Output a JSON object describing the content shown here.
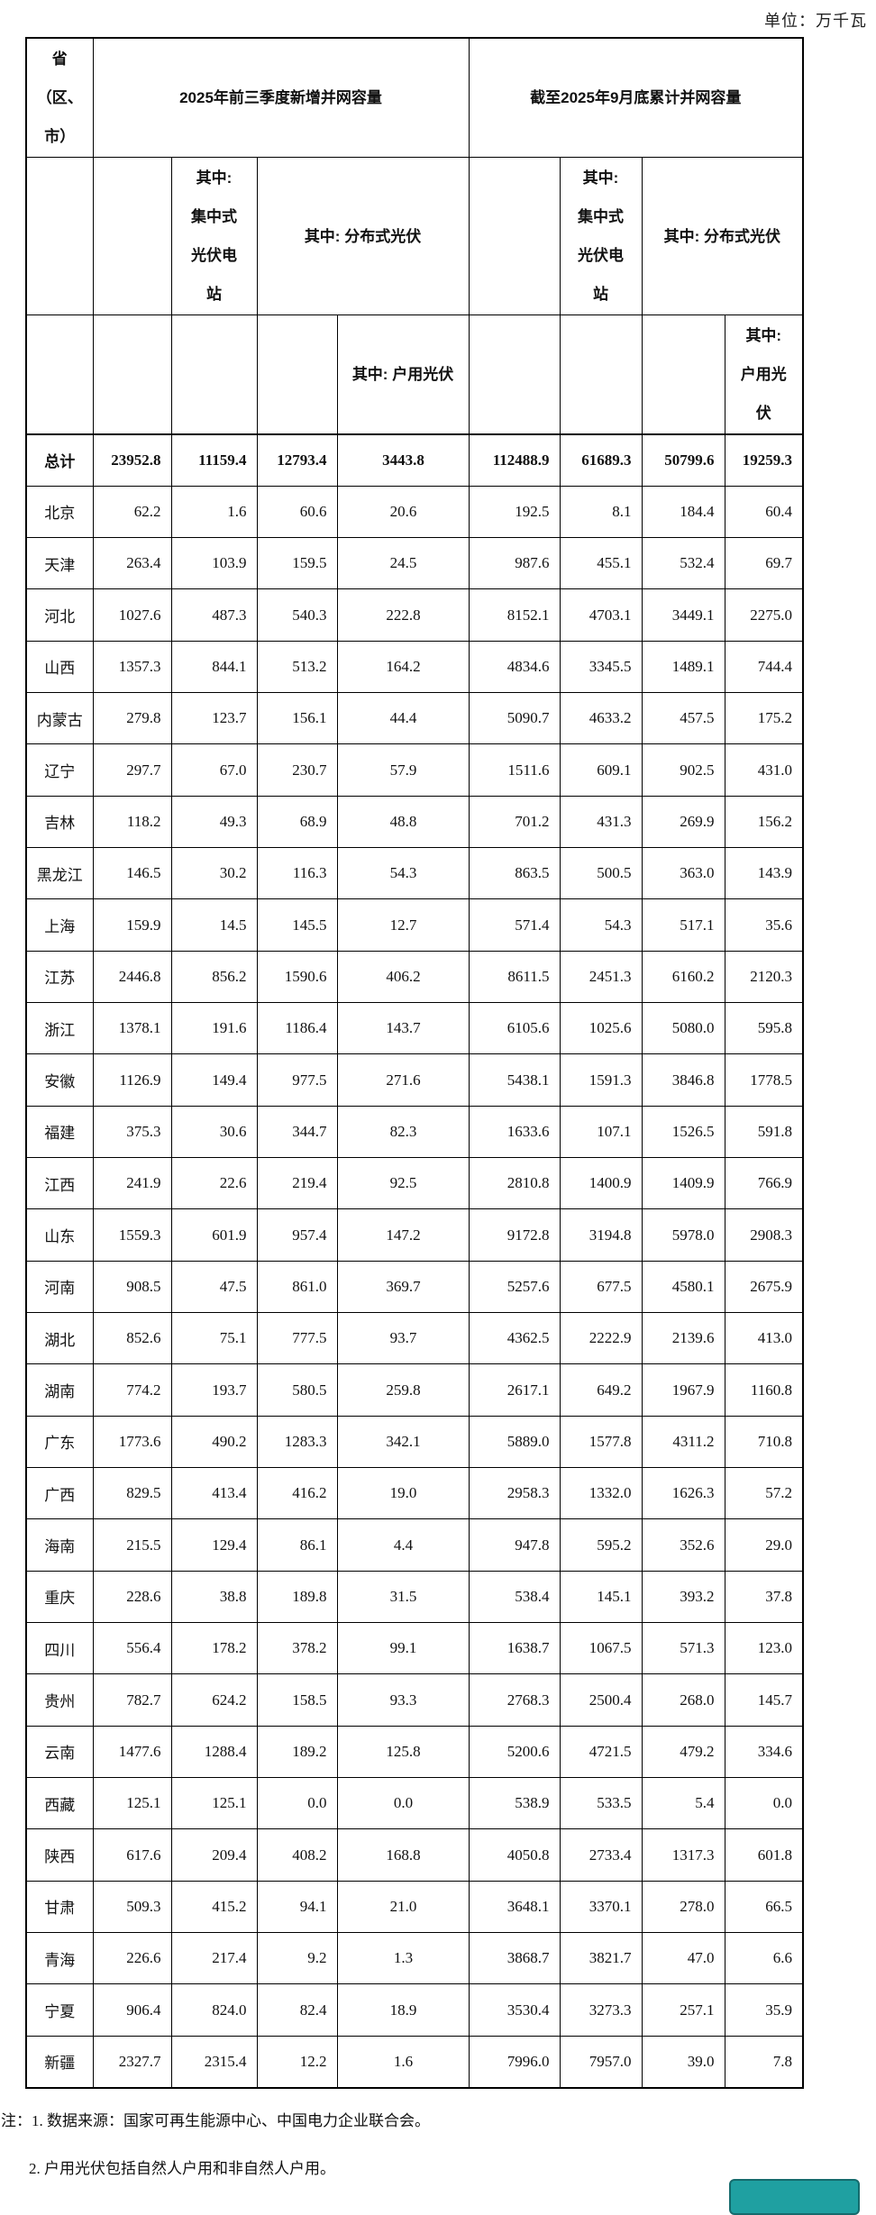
{
  "unit_label": "单位：万千瓦",
  "table": {
    "corner_header": "省\n（区、\n市）",
    "group1_title": "2025年前三季度新增并网容量",
    "group2_title": "截至2025年9月底累计并网容量",
    "sub_centralized": "其中:\n集中式\n光伏电\n站",
    "sub_distributed": "其中: 分布式光伏",
    "sub_household_wide": "其中: 户用光伏",
    "sub_household_narrow": "其中:\n户用光\n伏",
    "rows": [
      {
        "name": "总计",
        "values": [
          "23952.8",
          "11159.4",
          "12793.4",
          "3443.8",
          "112488.9",
          "61689.3",
          "50799.6",
          "19259.3"
        ]
      },
      {
        "name": "北京",
        "values": [
          "62.2",
          "1.6",
          "60.6",
          "20.6",
          "192.5",
          "8.1",
          "184.4",
          "60.4"
        ]
      },
      {
        "name": "天津",
        "values": [
          "263.4",
          "103.9",
          "159.5",
          "24.5",
          "987.6",
          "455.1",
          "532.4",
          "69.7"
        ]
      },
      {
        "name": "河北",
        "values": [
          "1027.6",
          "487.3",
          "540.3",
          "222.8",
          "8152.1",
          "4703.1",
          "3449.1",
          "2275.0"
        ]
      },
      {
        "name": "山西",
        "values": [
          "1357.3",
          "844.1",
          "513.2",
          "164.2",
          "4834.6",
          "3345.5",
          "1489.1",
          "744.4"
        ]
      },
      {
        "name": "内蒙古",
        "values": [
          "279.8",
          "123.7",
          "156.1",
          "44.4",
          "5090.7",
          "4633.2",
          "457.5",
          "175.2"
        ]
      },
      {
        "name": "辽宁",
        "values": [
          "297.7",
          "67.0",
          "230.7",
          "57.9",
          "1511.6",
          "609.1",
          "902.5",
          "431.0"
        ]
      },
      {
        "name": "吉林",
        "values": [
          "118.2",
          "49.3",
          "68.9",
          "48.8",
          "701.2",
          "431.3",
          "269.9",
          "156.2"
        ]
      },
      {
        "name": "黑龙江",
        "values": [
          "146.5",
          "30.2",
          "116.3",
          "54.3",
          "863.5",
          "500.5",
          "363.0",
          "143.9"
        ]
      },
      {
        "name": "上海",
        "values": [
          "159.9",
          "14.5",
          "145.5",
          "12.7",
          "571.4",
          "54.3",
          "517.1",
          "35.6"
        ]
      },
      {
        "name": "江苏",
        "values": [
          "2446.8",
          "856.2",
          "1590.6",
          "406.2",
          "8611.5",
          "2451.3",
          "6160.2",
          "2120.3"
        ]
      },
      {
        "name": "浙江",
        "values": [
          "1378.1",
          "191.6",
          "1186.4",
          "143.7",
          "6105.6",
          "1025.6",
          "5080.0",
          "595.8"
        ]
      },
      {
        "name": "安徽",
        "values": [
          "1126.9",
          "149.4",
          "977.5",
          "271.6",
          "5438.1",
          "1591.3",
          "3846.8",
          "1778.5"
        ]
      },
      {
        "name": "福建",
        "values": [
          "375.3",
          "30.6",
          "344.7",
          "82.3",
          "1633.6",
          "107.1",
          "1526.5",
          "591.8"
        ]
      },
      {
        "name": "江西",
        "values": [
          "241.9",
          "22.6",
          "219.4",
          "92.5",
          "2810.8",
          "1400.9",
          "1409.9",
          "766.9"
        ]
      },
      {
        "name": "山东",
        "values": [
          "1559.3",
          "601.9",
          "957.4",
          "147.2",
          "9172.8",
          "3194.8",
          "5978.0",
          "2908.3"
        ]
      },
      {
        "name": "河南",
        "values": [
          "908.5",
          "47.5",
          "861.0",
          "369.7",
          "5257.6",
          "677.5",
          "4580.1",
          "2675.9"
        ]
      },
      {
        "name": "湖北",
        "values": [
          "852.6",
          "75.1",
          "777.5",
          "93.7",
          "4362.5",
          "2222.9",
          "2139.6",
          "413.0"
        ]
      },
      {
        "name": "湖南",
        "values": [
          "774.2",
          "193.7",
          "580.5",
          "259.8",
          "2617.1",
          "649.2",
          "1967.9",
          "1160.8"
        ]
      },
      {
        "name": "广东",
        "values": [
          "1773.6",
          "490.2",
          "1283.3",
          "342.1",
          "5889.0",
          "1577.8",
          "4311.2",
          "710.8"
        ]
      },
      {
        "name": "广西",
        "values": [
          "829.5",
          "413.4",
          "416.2",
          "19.0",
          "2958.3",
          "1332.0",
          "1626.3",
          "57.2"
        ]
      },
      {
        "name": "海南",
        "values": [
          "215.5",
          "129.4",
          "86.1",
          "4.4",
          "947.8",
          "595.2",
          "352.6",
          "29.0"
        ]
      },
      {
        "name": "重庆",
        "values": [
          "228.6",
          "38.8",
          "189.8",
          "31.5",
          "538.4",
          "145.1",
          "393.2",
          "37.8"
        ]
      },
      {
        "name": "四川",
        "values": [
          "556.4",
          "178.2",
          "378.2",
          "99.1",
          "1638.7",
          "1067.5",
          "571.3",
          "123.0"
        ]
      },
      {
        "name": "贵州",
        "values": [
          "782.7",
          "624.2",
          "158.5",
          "93.3",
          "2768.3",
          "2500.4",
          "268.0",
          "145.7"
        ]
      },
      {
        "name": "云南",
        "values": [
          "1477.6",
          "1288.4",
          "189.2",
          "125.8",
          "5200.6",
          "4721.5",
          "479.2",
          "334.6"
        ]
      },
      {
        "name": "西藏",
        "values": [
          "125.1",
          "125.1",
          "0.0",
          "0.0",
          "538.9",
          "533.5",
          "5.4",
          "0.0"
        ]
      },
      {
        "name": "陕西",
        "values": [
          "617.6",
          "209.4",
          "408.2",
          "168.8",
          "4050.8",
          "2733.4",
          "1317.3",
          "601.8"
        ]
      },
      {
        "name": "甘肃",
        "values": [
          "509.3",
          "415.2",
          "94.1",
          "21.0",
          "3648.1",
          "3370.1",
          "278.0",
          "66.5"
        ]
      },
      {
        "name": "青海",
        "values": [
          "226.6",
          "217.4",
          "9.2",
          "1.3",
          "3868.7",
          "3821.7",
          "47.0",
          "6.6"
        ]
      },
      {
        "name": "宁夏",
        "values": [
          "906.4",
          "824.0",
          "82.4",
          "18.9",
          "3530.4",
          "3273.3",
          "257.1",
          "35.9"
        ]
      },
      {
        "name": "新疆",
        "values": [
          "2327.7",
          "2315.4",
          "12.2",
          "1.6",
          "7996.0",
          "7957.0",
          "39.0",
          "7.8"
        ]
      }
    ]
  },
  "notes": {
    "line1": "注：1. 数据来源：国家可再生能源中心、中国电力企业联合会。",
    "line2": "2. 户用光伏包括自然人户用和非自然人户用。"
  },
  "colors": {
    "button_fill": "#1FA0A1",
    "button_border": "#156B6D"
  }
}
